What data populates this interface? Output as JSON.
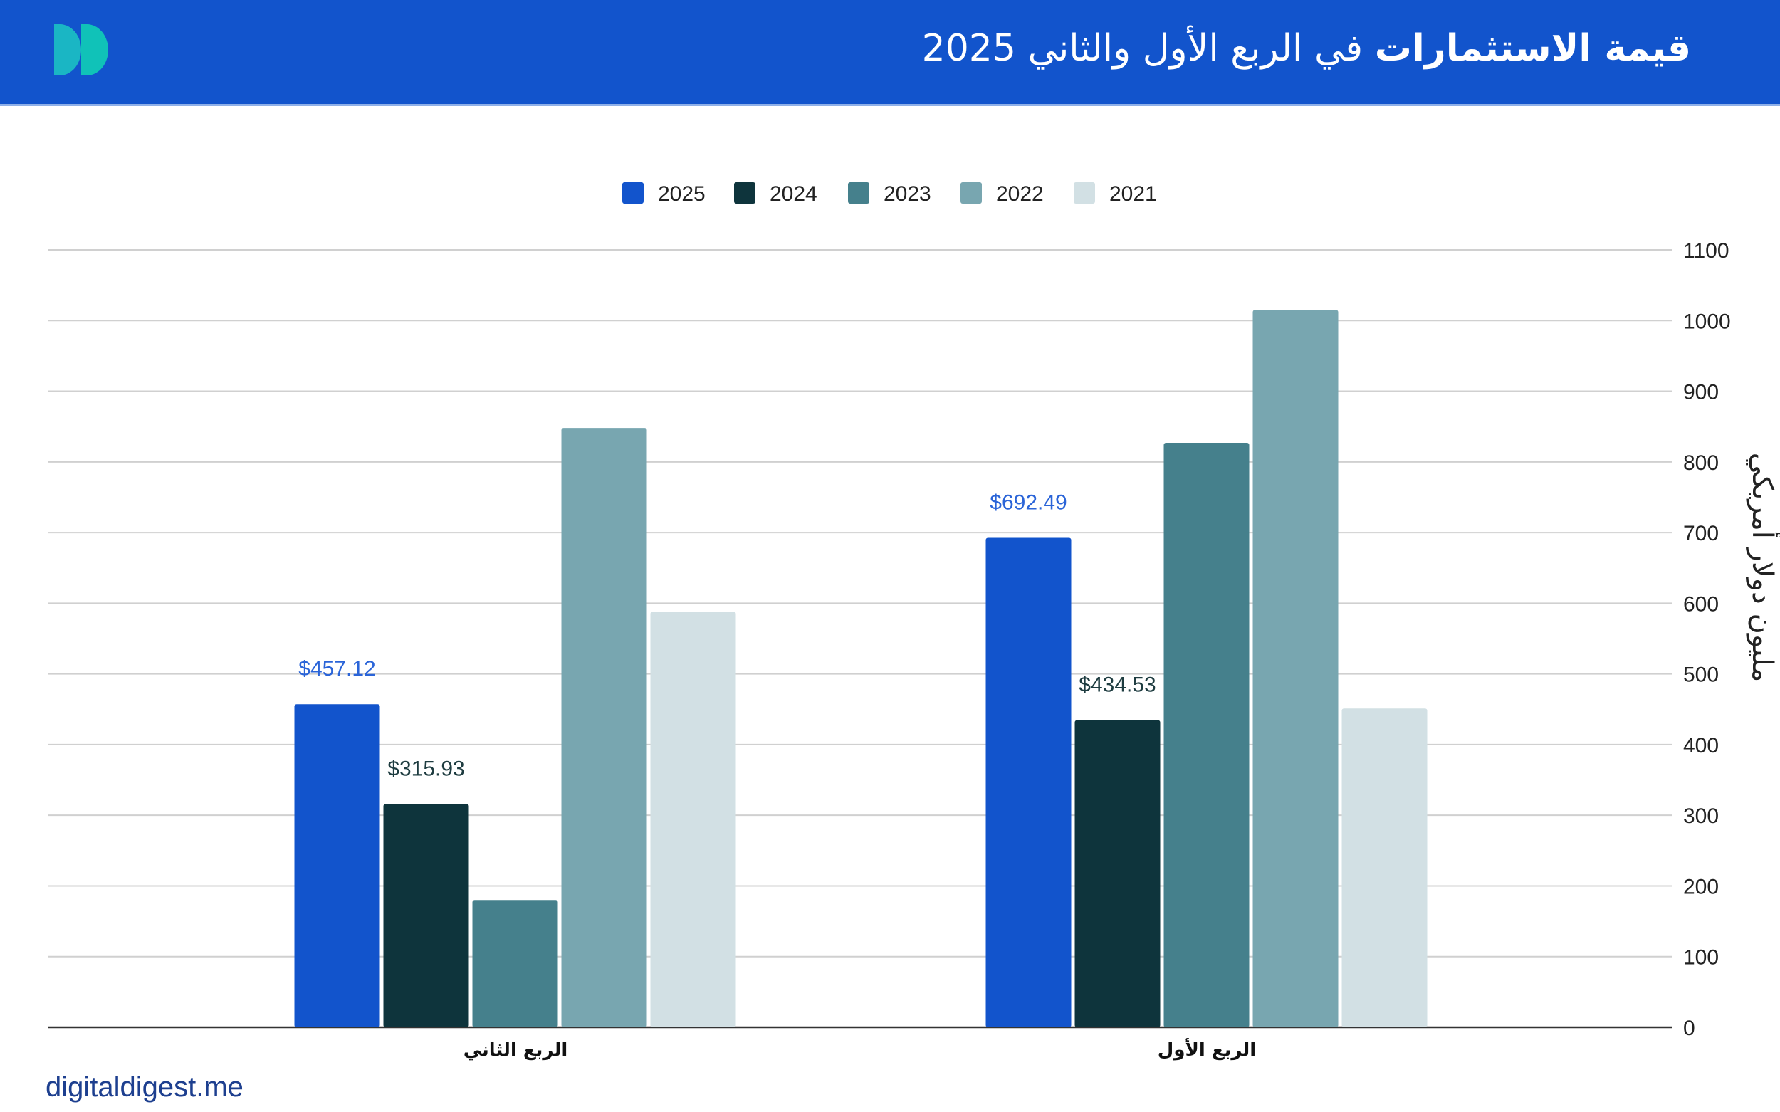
{
  "header": {
    "title_bold": "قيمة الاستثمارات",
    "title_rest": " في الربع الأول والثاني 2025"
  },
  "footer": {
    "site": "digitaldigest.me"
  },
  "logo": {
    "icon": "double-d-logo",
    "colors": [
      "#1ab6c4",
      "#10c2b8"
    ]
  },
  "chart_data": {
    "type": "bar",
    "title": "قيمة الاستثمارات في الربع الأول والثاني 2025",
    "categories": [
      "الربع الثاني",
      "الربع الأول"
    ],
    "ylabel": "مليون دولار أمريكي",
    "xlabel": "",
    "ylim": [
      0,
      1100
    ],
    "yticks": [
      0,
      100,
      200,
      300,
      400,
      500,
      600,
      700,
      800,
      900,
      1000,
      1100
    ],
    "grid": true,
    "legend_position": "top-center",
    "series": [
      {
        "name": "2025",
        "color": "#1254cc",
        "values": [
          457.12,
          692.49
        ],
        "labels": [
          "$457.12",
          "$692.49"
        ],
        "label_color": "#2a64d8"
      },
      {
        "name": "2024",
        "color": "#0e343c",
        "values": [
          315.93,
          434.53
        ],
        "labels": [
          "$315.93",
          "$434.53"
        ],
        "label_color": "#1e3c40"
      },
      {
        "name": "2023",
        "color": "#45808c",
        "values": [
          180,
          827
        ]
      },
      {
        "name": "2022",
        "color": "#78a6b0",
        "values": [
          848,
          1015
        ]
      },
      {
        "name": "2021",
        "color": "#d2e0e4",
        "values": [
          588,
          451
        ]
      }
    ]
  }
}
